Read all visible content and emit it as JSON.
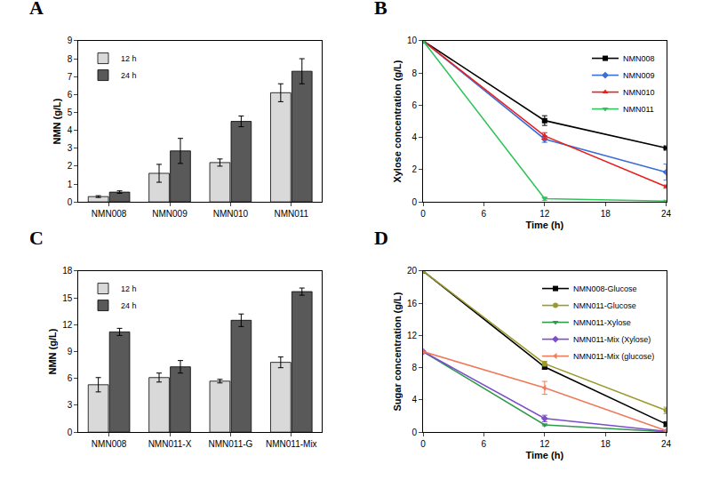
{
  "chart_data": [
    {
      "type": "bar",
      "title": "A",
      "y_label": "NMN (g/L)",
      "categories": [
        "NMN008",
        "NMN009",
        "NMN010",
        "NMN011"
      ],
      "series": [
        {
          "name": "12 h",
          "color": "#d9d9d9",
          "values": [
            0.3,
            1.6,
            2.2,
            6.1
          ],
          "errors": [
            0.05,
            0.5,
            0.2,
            0.5
          ]
        },
        {
          "name": "24 h",
          "color": "#595959",
          "values": [
            0.55,
            2.85,
            4.5,
            7.3
          ],
          "errors": [
            0.07,
            0.7,
            0.3,
            0.7
          ]
        }
      ],
      "ylim": [
        0,
        9
      ],
      "yticks": [
        0,
        1,
        2,
        3,
        4,
        5,
        6,
        7,
        8,
        9
      ],
      "grid": false,
      "legend": "upper left"
    },
    {
      "type": "line",
      "title": "B",
      "x_label": "Time (h)",
      "y_label": "Xylose concentration (g/L)",
      "x": [
        0,
        12,
        24
      ],
      "series": [
        {
          "name": "NMN008",
          "color": "#000000",
          "marker": "square",
          "values": [
            10,
            5.05,
            3.35
          ],
          "errors": [
            0,
            0.3,
            0.05
          ]
        },
        {
          "name": "NMN009",
          "color": "#3a6fd8",
          "marker": "diamond",
          "values": [
            10,
            3.9,
            1.85
          ],
          "errors": [
            0,
            0.2,
            0.5
          ]
        },
        {
          "name": "NMN010",
          "color": "#e8201c",
          "marker": "triangle-up",
          "values": [
            10,
            4.1,
            0.95
          ],
          "errors": [
            0,
            0.2,
            0.1
          ]
        },
        {
          "name": "NMN011",
          "color": "#2fc45a",
          "marker": "triangle-down",
          "values": [
            10,
            0.2,
            0.05
          ],
          "errors": [
            0,
            0.1,
            0.02
          ]
        }
      ],
      "xlim": [
        0,
        24
      ],
      "xticks": [
        0,
        6,
        12,
        18,
        24
      ],
      "ylim": [
        0,
        10
      ],
      "yticks": [
        0,
        2,
        4,
        6,
        8,
        10
      ],
      "grid": false,
      "legend": "upper right"
    },
    {
      "type": "bar",
      "title": "C",
      "y_label": "NMN (g/L)",
      "categories": [
        "NMN008",
        "NMN011-X",
        "NMN011-G",
        "NMN011-Mix"
      ],
      "series": [
        {
          "name": "12 h",
          "color": "#d9d9d9",
          "values": [
            5.3,
            6.1,
            5.7,
            7.8
          ],
          "errors": [
            0.8,
            0.5,
            0.2,
            0.6
          ]
        },
        {
          "name": "24 h",
          "color": "#595959",
          "values": [
            11.2,
            7.3,
            12.5,
            15.7
          ],
          "errors": [
            0.4,
            0.7,
            0.7,
            0.4
          ]
        }
      ],
      "ylim": [
        0,
        18
      ],
      "yticks": [
        0,
        3,
        6,
        9,
        12,
        15,
        18
      ],
      "grid": false,
      "legend": "upper left"
    },
    {
      "type": "line",
      "title": "D",
      "x_label": "Time (h)",
      "y_label": "Sugar concentration (g/L)",
      "x": [
        0,
        12,
        24
      ],
      "series": [
        {
          "name": "NMN008-Glucose",
          "color": "#000000",
          "marker": "square",
          "values": [
            20,
            8.1,
            1.0
          ],
          "errors": [
            0,
            0.3,
            0.3
          ]
        },
        {
          "name": "NMN011-Glucose",
          "color": "#9a9a2e",
          "marker": "circle",
          "values": [
            20,
            8.5,
            2.7
          ],
          "errors": [
            0,
            0.3,
            0.4
          ]
        },
        {
          "name": "NMN011-Xylose",
          "color": "#2e9a4a",
          "marker": "triangle-down",
          "values": [
            10,
            0.9,
            0.05
          ],
          "errors": [
            0,
            0.1,
            0.02
          ]
        },
        {
          "name": "NMN011-Mix (Xylose)",
          "color": "#7a4fc9",
          "marker": "diamond",
          "values": [
            10,
            1.7,
            0.1
          ],
          "errors": [
            0,
            0.4,
            0.05
          ]
        },
        {
          "name": "NMN011-Mix (glucose)",
          "color": "#f07a5a",
          "marker": "triangle-left",
          "values": [
            10,
            5.5,
            0.2
          ],
          "errors": [
            0,
            0.8,
            0.05
          ]
        }
      ],
      "xlim": [
        0,
        24
      ],
      "xticks": [
        0,
        6,
        12,
        18,
        24
      ],
      "ylim": [
        0,
        20
      ],
      "yticks": [
        0,
        4,
        8,
        12,
        16,
        20
      ],
      "grid": false,
      "legend": "upper right"
    }
  ]
}
